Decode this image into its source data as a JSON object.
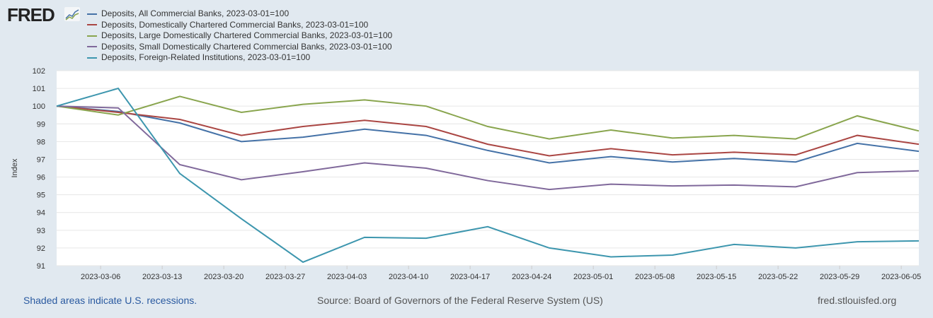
{
  "logo": "FRED",
  "footer": {
    "recession_note": "Shaded areas indicate U.S. recessions.",
    "source": "Source: Board of Governors of the Federal Reserve System (US)",
    "site": "fred.stlouisfed.org"
  },
  "chart_data": {
    "type": "line",
    "ylabel": "Index",
    "ylim": [
      91,
      102
    ],
    "yticks": [
      "91",
      "92",
      "93",
      "94",
      "95",
      "96",
      "97",
      "98",
      "99",
      "100",
      "101",
      "102"
    ],
    "xticks": [
      "2023-03-06",
      "2023-03-13",
      "2023-03-20",
      "2023-03-27",
      "2023-04-03",
      "2023-04-10",
      "2023-04-17",
      "2023-04-24",
      "2023-05-01",
      "2023-05-08",
      "2023-05-15",
      "2023-05-22",
      "2023-05-29",
      "2023-06-05"
    ],
    "x": [
      "2023-03-01",
      "2023-03-08",
      "2023-03-15",
      "2023-03-22",
      "2023-03-29",
      "2023-04-05",
      "2023-04-12",
      "2023-04-19",
      "2023-04-26",
      "2023-05-03",
      "2023-05-10",
      "2023-05-17",
      "2023-05-24",
      "2023-05-31",
      "2023-06-07"
    ],
    "legend_position": "top-left",
    "series": [
      {
        "name": "Deposits, All Commercial Banks, 2023-03-01=100",
        "color": "#4572a7",
        "values": [
          100,
          99.7,
          99.05,
          98.0,
          98.25,
          98.7,
          98.35,
          97.5,
          96.8,
          97.15,
          96.85,
          97.05,
          96.85,
          97.9,
          97.45
        ]
      },
      {
        "name": "Deposits, Domestically Chartered Commercial Banks, 2023-03-01=100",
        "color": "#aa4643",
        "values": [
          100,
          99.65,
          99.25,
          98.35,
          98.85,
          99.2,
          98.85,
          97.85,
          97.2,
          97.6,
          97.25,
          97.4,
          97.25,
          98.35,
          97.85
        ]
      },
      {
        "name": "Deposits, Large Domestically Chartered Commercial Banks, 2023-03-01=100",
        "color": "#89a54e",
        "values": [
          100,
          99.5,
          100.55,
          99.65,
          100.1,
          100.35,
          100.0,
          98.85,
          98.15,
          98.65,
          98.2,
          98.35,
          98.15,
          99.45,
          98.6
        ]
      },
      {
        "name": "Deposits, Small Domestically Chartered Commercial Banks, 2023-03-01=100",
        "color": "#80699b",
        "values": [
          100,
          99.9,
          96.7,
          95.85,
          96.3,
          96.8,
          96.5,
          95.8,
          95.3,
          95.6,
          95.5,
          95.55,
          95.45,
          96.25,
          96.35
        ]
      },
      {
        "name": "Deposits, Foreign-Related Institutions, 2023-03-01=100",
        "color": "#3d96ae",
        "values": [
          100,
          101.0,
          96.2,
          93.65,
          91.2,
          92.6,
          92.55,
          93.2,
          92.0,
          91.5,
          91.6,
          92.2,
          92.0,
          92.35,
          92.4
        ]
      }
    ]
  }
}
